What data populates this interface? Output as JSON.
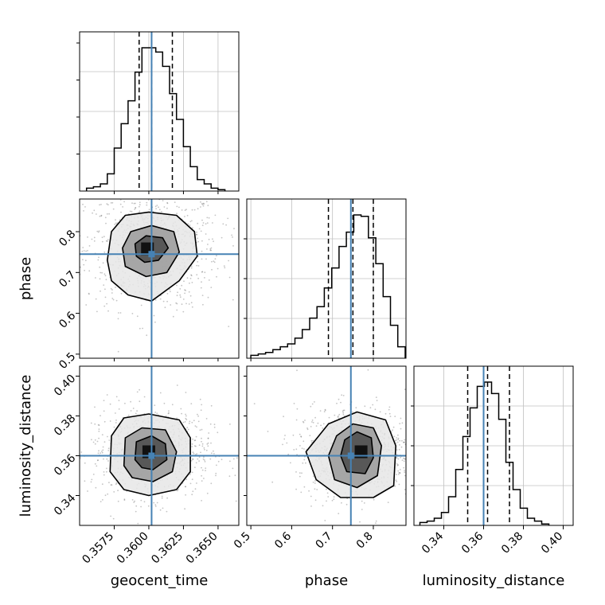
{
  "chart_data": {
    "type": "corner",
    "parameters": [
      "geocent_time",
      "phase",
      "luminosity_distance"
    ],
    "truths": [
      0.3602,
      0.745,
      0.36
    ],
    "colors": {
      "truth": "#4682b4",
      "hist": "#000000",
      "grid": "#c0c0c0",
      "points": "#555555"
    },
    "diagonal": [
      {
        "parameter": "geocent_time",
        "xlim": [
          0.355,
          0.3665
        ],
        "bins_x": [
          0.3555,
          0.356,
          0.3565,
          0.357,
          0.3575,
          0.358,
          0.3585,
          0.359,
          0.3595,
          0.36,
          0.3605,
          0.361,
          0.3615,
          0.362,
          0.3625,
          0.363,
          0.3635,
          0.364,
          0.3645,
          0.365,
          0.3655
        ],
        "counts": [
          0.02,
          0.03,
          0.05,
          0.12,
          0.3,
          0.47,
          0.63,
          0.83,
          1.0,
          1.0,
          0.97,
          0.87,
          0.68,
          0.5,
          0.31,
          0.17,
          0.08,
          0.05,
          0.02,
          0.01
        ],
        "quantiles": [
          0.3593,
          0.3602,
          0.3617
        ],
        "truth": 0.3602
      },
      {
        "parameter": "phase",
        "xlim": [
          0.49,
          0.88
        ],
        "bins_x": [
          0.5,
          0.518,
          0.536,
          0.554,
          0.572,
          0.59,
          0.608,
          0.626,
          0.644,
          0.662,
          0.68,
          0.698,
          0.716,
          0.734,
          0.752,
          0.77,
          0.788,
          0.806,
          0.824,
          0.842,
          0.86,
          0.878
        ],
        "counts": [
          0.02,
          0.03,
          0.04,
          0.06,
          0.08,
          0.1,
          0.14,
          0.2,
          0.28,
          0.36,
          0.49,
          0.63,
          0.78,
          0.88,
          1.0,
          0.99,
          0.84,
          0.66,
          0.43,
          0.23,
          0.08
        ],
        "quantiles": [
          0.69,
          0.75,
          0.8
        ],
        "truth": 0.745
      },
      {
        "parameter": "luminosity_distance",
        "xlim": [
          0.325,
          0.405
        ],
        "bins_x": [
          0.328,
          0.3316,
          0.3352,
          0.3388,
          0.3424,
          0.346,
          0.3496,
          0.3532,
          0.3568,
          0.3604,
          0.364,
          0.3676,
          0.3712,
          0.3748,
          0.3784,
          0.382,
          0.3856,
          0.3892,
          0.3928
        ],
        "counts": [
          0.02,
          0.03,
          0.05,
          0.09,
          0.2,
          0.39,
          0.62,
          0.82,
          0.97,
          1.0,
          0.92,
          0.74,
          0.44,
          0.25,
          0.12,
          0.05,
          0.03,
          0.01
        ],
        "quantiles": [
          0.352,
          0.362,
          0.373
        ],
        "truth": 0.36
      }
    ],
    "axes": {
      "geocent_time": {
        "lim": [
          0.355,
          0.3665
        ],
        "ticks": [
          0.3575,
          0.36,
          0.3625,
          0.365
        ],
        "tick_labels": [
          "0.3575",
          "0.3600",
          "0.3625",
          "0.3650"
        ]
      },
      "phase": {
        "lim": [
          0.49,
          0.88
        ],
        "ticks": [
          0.5,
          0.6,
          0.7,
          0.8
        ],
        "tick_labels": [
          "0.5",
          "0.6",
          "0.7",
          "0.8"
        ]
      },
      "luminosity_distance": {
        "lim": [
          0.325,
          0.405
        ],
        "ticks": [
          0.34,
          0.36,
          0.38,
          0.4
        ],
        "tick_labels": [
          "0.34",
          "0.36",
          "0.38",
          "0.40"
        ]
      }
    },
    "scatter_panels": [
      {
        "x": "geocent_time",
        "y": "phase",
        "center": [
          0.3603,
          0.758
        ],
        "spread": [
          0.0018,
          0.055
        ],
        "contours": [
          [
            [
              0.3573,
              0.68
            ],
            [
              0.357,
              0.73
            ],
            [
              0.3573,
              0.8
            ],
            [
              0.3583,
              0.84
            ],
            [
              0.36,
              0.848
            ],
            [
              0.362,
              0.84
            ],
            [
              0.3633,
              0.8
            ],
            [
              0.3635,
              0.74
            ],
            [
              0.3622,
              0.68
            ],
            [
              0.3602,
              0.63
            ],
            [
              0.3585,
              0.645
            ]
          ],
          [
            [
              0.3583,
              0.715
            ],
            [
              0.3581,
              0.76
            ],
            [
              0.3587,
              0.8
            ],
            [
              0.3602,
              0.815
            ],
            [
              0.3618,
              0.8
            ],
            [
              0.3622,
              0.75
            ],
            [
              0.3613,
              0.7
            ],
            [
              0.3598,
              0.69
            ]
          ],
          [
            [
              0.3591,
              0.74
            ],
            [
              0.359,
              0.77
            ],
            [
              0.3598,
              0.79
            ],
            [
              0.361,
              0.785
            ],
            [
              0.3614,
              0.76
            ],
            [
              0.3607,
              0.73
            ],
            [
              0.3597,
              0.725
            ]
          ]
        ],
        "core": [
          0.3599,
          0.758
        ]
      },
      {
        "x": "geocent_time",
        "y": "luminosity_distance",
        "center": [
          0.3602,
          0.362
        ],
        "spread": [
          0.0016,
          0.0085
        ],
        "contours": [
          [
            [
              0.3572,
              0.352
            ],
            [
              0.3573,
              0.37
            ],
            [
              0.3582,
              0.379
            ],
            [
              0.36,
              0.381
            ],
            [
              0.3622,
              0.378
            ],
            [
              0.363,
              0.369
            ],
            [
              0.363,
              0.352
            ],
            [
              0.362,
              0.343
            ],
            [
              0.36,
              0.34
            ],
            [
              0.3582,
              0.343
            ]
          ],
          [
            [
              0.3582,
              0.355
            ],
            [
              0.3583,
              0.369
            ],
            [
              0.3595,
              0.374
            ],
            [
              0.3612,
              0.373
            ],
            [
              0.362,
              0.362
            ],
            [
              0.3617,
              0.352
            ],
            [
              0.3603,
              0.347
            ],
            [
              0.3588,
              0.349
            ]
          ],
          [
            [
              0.359,
              0.358
            ],
            [
              0.3591,
              0.367
            ],
            [
              0.3602,
              0.37
            ],
            [
              0.3612,
              0.366
            ],
            [
              0.3613,
              0.358
            ],
            [
              0.3603,
              0.353
            ],
            [
              0.3595,
              0.354
            ]
          ]
        ],
        "core": [
          0.36,
          0.362
        ]
      },
      {
        "x": "phase",
        "y": "luminosity_distance",
        "center": [
          0.76,
          0.362
        ],
        "spread": [
          0.055,
          0.0085
        ],
        "contours": [
          [
            [
              0.635,
              0.362
            ],
            [
              0.66,
              0.348
            ],
            [
              0.72,
              0.339
            ],
            [
              0.8,
              0.339
            ],
            [
              0.85,
              0.345
            ],
            [
              0.855,
              0.365
            ],
            [
              0.83,
              0.378
            ],
            [
              0.76,
              0.382
            ],
            [
              0.69,
              0.376
            ]
          ],
          [
            [
              0.69,
              0.36
            ],
            [
              0.705,
              0.348
            ],
            [
              0.76,
              0.344
            ],
            [
              0.81,
              0.35
            ],
            [
              0.82,
              0.365
            ],
            [
              0.8,
              0.374
            ],
            [
              0.75,
              0.376
            ],
            [
              0.71,
              0.37
            ]
          ],
          [
            [
              0.72,
              0.36
            ],
            [
              0.735,
              0.352
            ],
            [
              0.78,
              0.351
            ],
            [
              0.8,
              0.359
            ],
            [
              0.795,
              0.369
            ],
            [
              0.76,
              0.372
            ],
            [
              0.73,
              0.368
            ]
          ]
        ],
        "core": [
          0.77,
          0.362
        ]
      }
    ]
  }
}
